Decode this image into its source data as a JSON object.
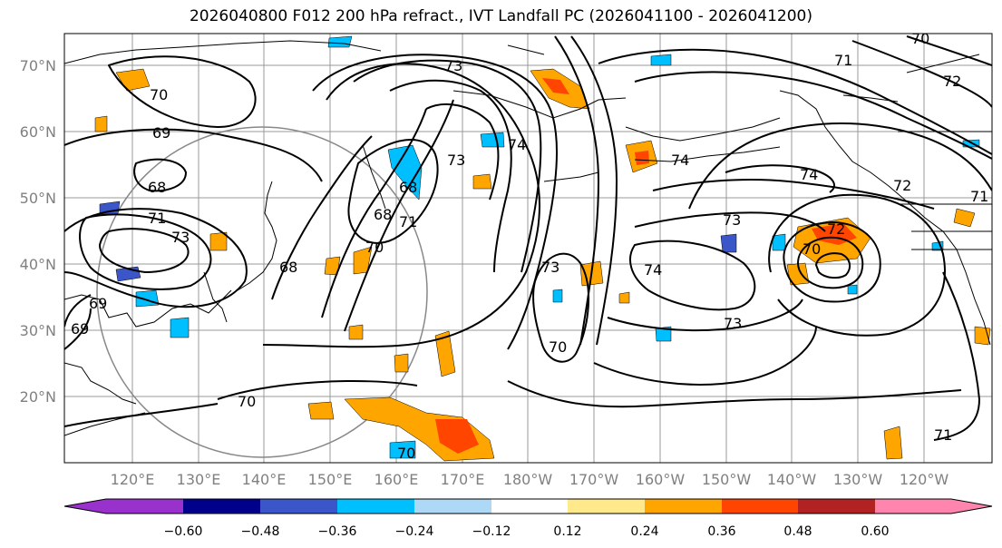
{
  "title": "2026040800 F012 200 hPa refract., IVT Landfall PC (2026041100 - 2026041200)",
  "lat_ticks": [
    "20°N",
    "30°N",
    "40°N",
    "50°N",
    "60°N",
    "70°N"
  ],
  "lon_ticks": [
    "120°E",
    "130°E",
    "140°E",
    "150°E",
    "160°E",
    "170°E",
    "180°W",
    "170°W",
    "160°W",
    "150°W",
    "140°W",
    "130°W",
    "120°W"
  ],
  "colorbar": {
    "ticks": [
      "−0.60",
      "−0.48",
      "−0.36",
      "−0.24",
      "−0.12",
      "0.12",
      "0.24",
      "0.36",
      "0.48",
      "0.60"
    ],
    "colors": [
      "#9932CC",
      "#00008B",
      "#3A56C9",
      "#00BFFF",
      "#ADD8F6",
      "#FFFFFF",
      "#FFE98A",
      "#FFA500",
      "#FF4500",
      "#B22222",
      "#FF85AE"
    ],
    "under_color": "#9932CC",
    "over_color": "#FF85AE"
  },
  "contour_labels": [
    "70",
    "69",
    "68",
    "73",
    "71",
    "68",
    "68",
    "68",
    "71",
    "70",
    "73",
    "73",
    "74",
    "74",
    "73",
    "74",
    "73",
    "73",
    "72",
    "70",
    "72",
    "71",
    "72",
    "74",
    "71",
    "69",
    "70",
    "70",
    "70",
    "71",
    "69",
    "70"
  ]
}
